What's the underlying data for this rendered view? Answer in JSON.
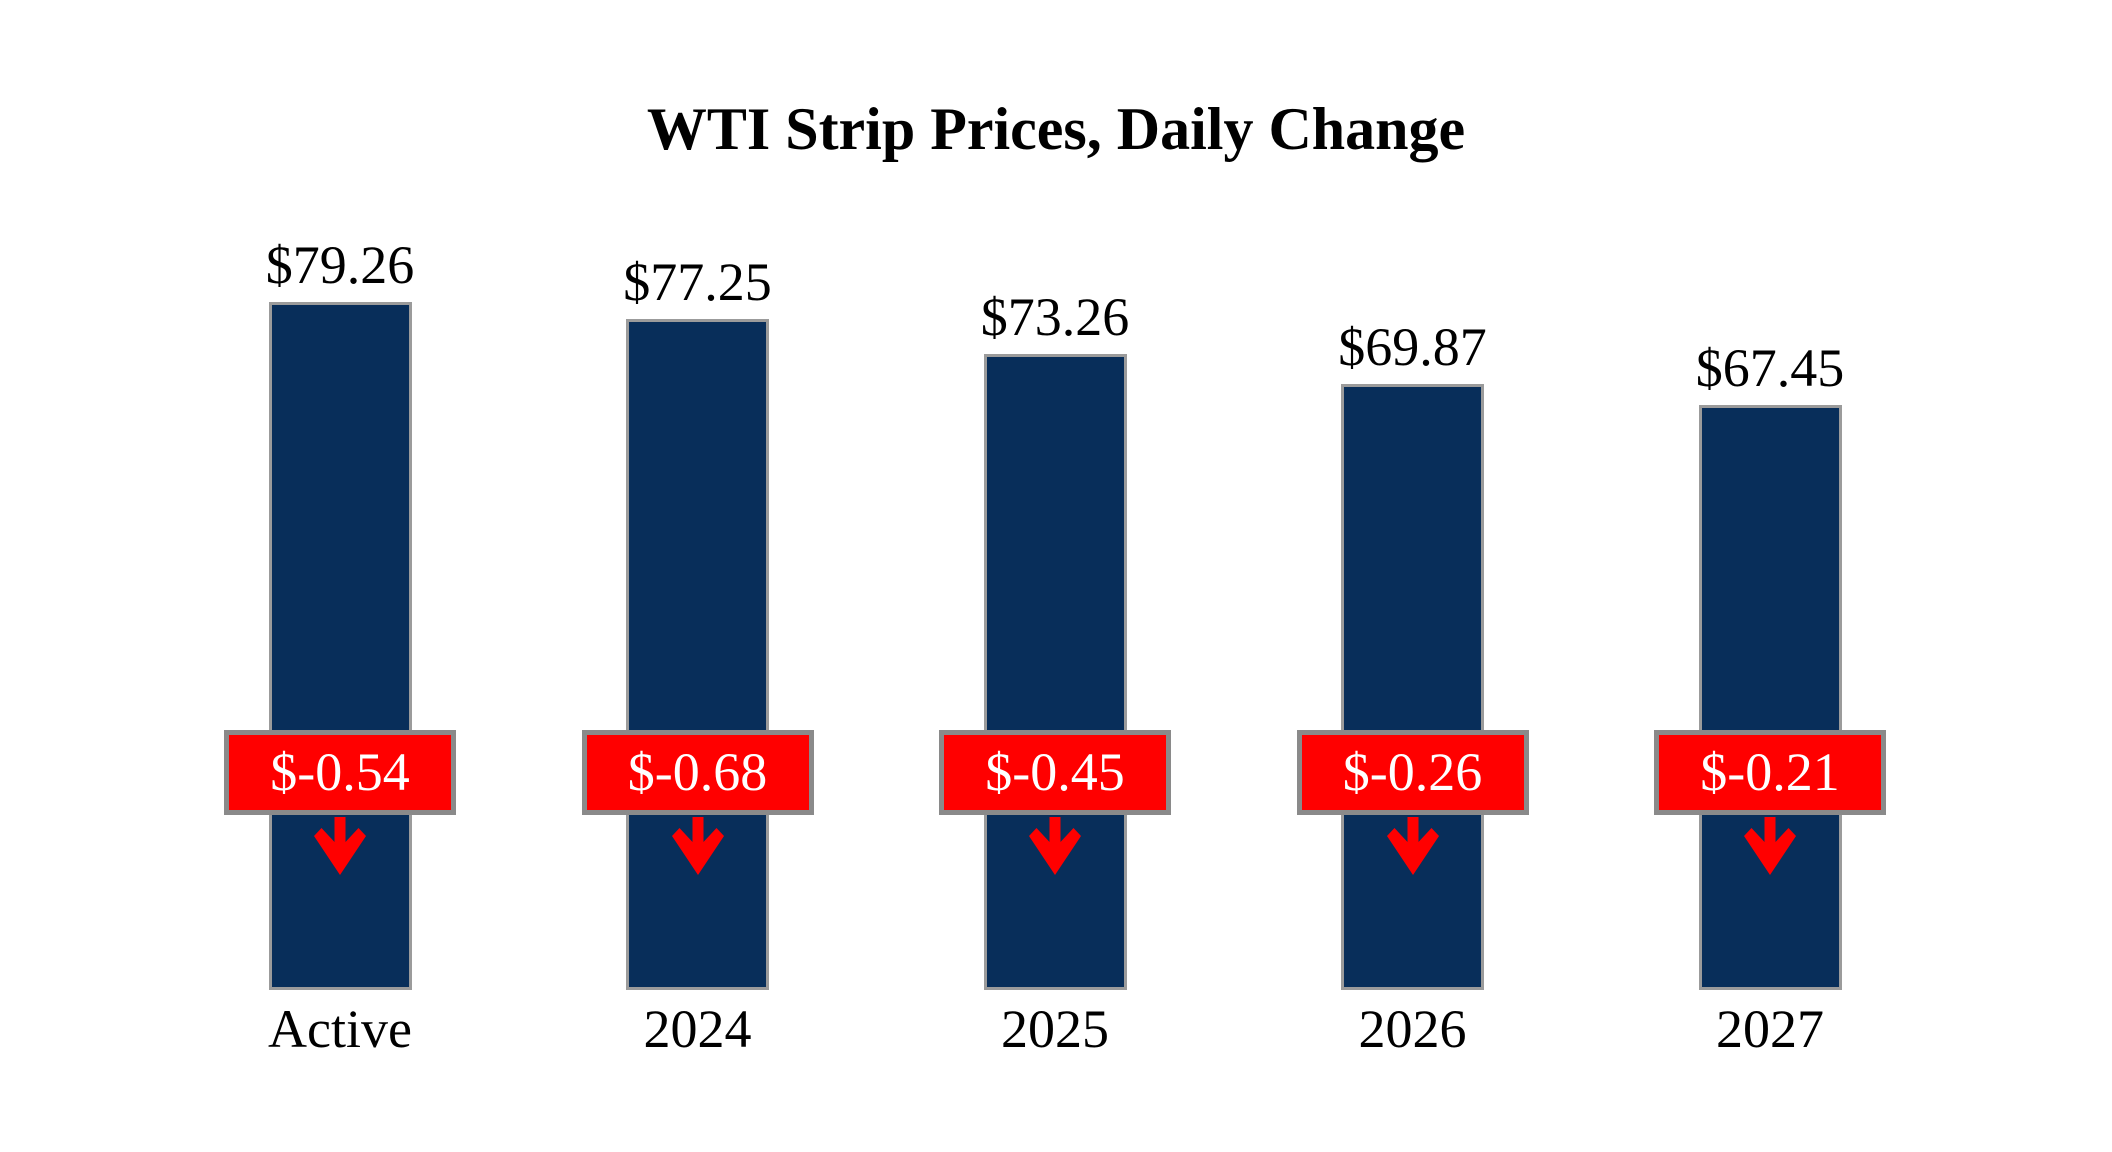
{
  "page": {
    "background": "#ffffff"
  },
  "chart_data": {
    "type": "bar",
    "title": "WTI Strip Prices, Daily Change",
    "categories": [
      "Active",
      "2024",
      "2025",
      "2026",
      "2027"
    ],
    "series": [
      {
        "name": "WTI Strip Price",
        "values": [
          79.26,
          77.25,
          73.26,
          69.87,
          67.45
        ],
        "labels": [
          "$79.26",
          "$77.25",
          "$73.26",
          "$69.87",
          "$67.45"
        ]
      },
      {
        "name": "Daily Change",
        "values": [
          -0.54,
          -0.68,
          -0.45,
          -0.26,
          -0.21
        ],
        "labels": [
          "$-0.54",
          "$-0.68",
          "$-0.45",
          "$-0.26",
          "$-0.21"
        ]
      }
    ],
    "ylim": [
      0,
      82
    ],
    "grid": false,
    "legend": false,
    "axes_visible": false,
    "annotation_style": "red boxes with white change values and red down arrows overlaid on each bar",
    "colors": {
      "bar_fill": "#082E5A",
      "bar_border": "#9B9B9B",
      "change_box_fill": "#FF0000",
      "change_box_border": "#8A8A8A",
      "change_text": "#FFFFFF",
      "value_label_text": "#000000",
      "title_text": "#000000",
      "arrow": "#FF0000"
    }
  }
}
